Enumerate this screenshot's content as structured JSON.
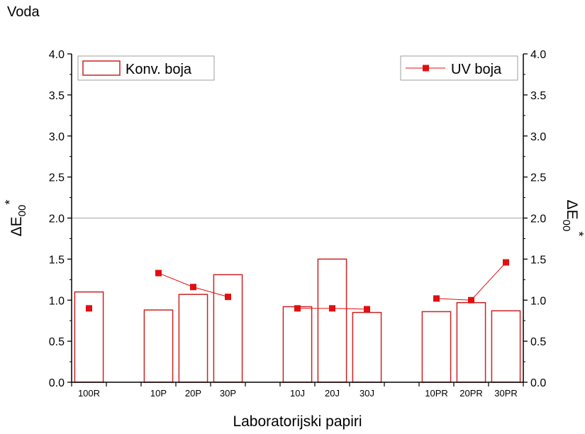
{
  "page_title": "Voda",
  "colors": {
    "bar": "#cc2222",
    "marker": "#e01010",
    "reference_line": "#b4b4b4",
    "axis": "#000000"
  },
  "chart_data": {
    "type": "bar",
    "title": "",
    "categories": [
      "100R",
      "",
      "10P",
      "20P",
      "30P",
      "",
      "10J",
      "20J",
      "30J",
      "",
      "10PR",
      "20PR",
      "30PR"
    ],
    "xlabel": "Laboratorijski papiri",
    "ylabel": "ΔE00*",
    "ylabel_parts": {
      "base": "ΔE",
      "sub": "00",
      "sup": "*"
    },
    "y2label_parts": {
      "base": "ΔE",
      "sub": "00",
      "sup": "*"
    },
    "ylim": [
      0.0,
      4.0
    ],
    "y_ticks": [
      "0.0",
      "0.5",
      "1.0",
      "1.5",
      "2.0",
      "2.5",
      "3.0",
      "3.5",
      "4.0"
    ],
    "y_tick_values": [
      0,
      0.5,
      1,
      1.5,
      2,
      2.5,
      3,
      3.5,
      4
    ],
    "reference_line": 2.0,
    "legend_placement": "top-left and top-right",
    "series": [
      {
        "name": "Konv. boja",
        "kind": "bar",
        "values": [
          1.1,
          null,
          0.88,
          1.07,
          1.31,
          null,
          0.92,
          1.5,
          0.85,
          null,
          0.86,
          0.97,
          0.87
        ]
      },
      {
        "name": "UV boja",
        "kind": "line-marker",
        "values": [
          0.9,
          null,
          1.33,
          1.16,
          1.04,
          null,
          0.9,
          0.9,
          0.89,
          null,
          1.02,
          1.0,
          1.46
        ]
      }
    ]
  }
}
